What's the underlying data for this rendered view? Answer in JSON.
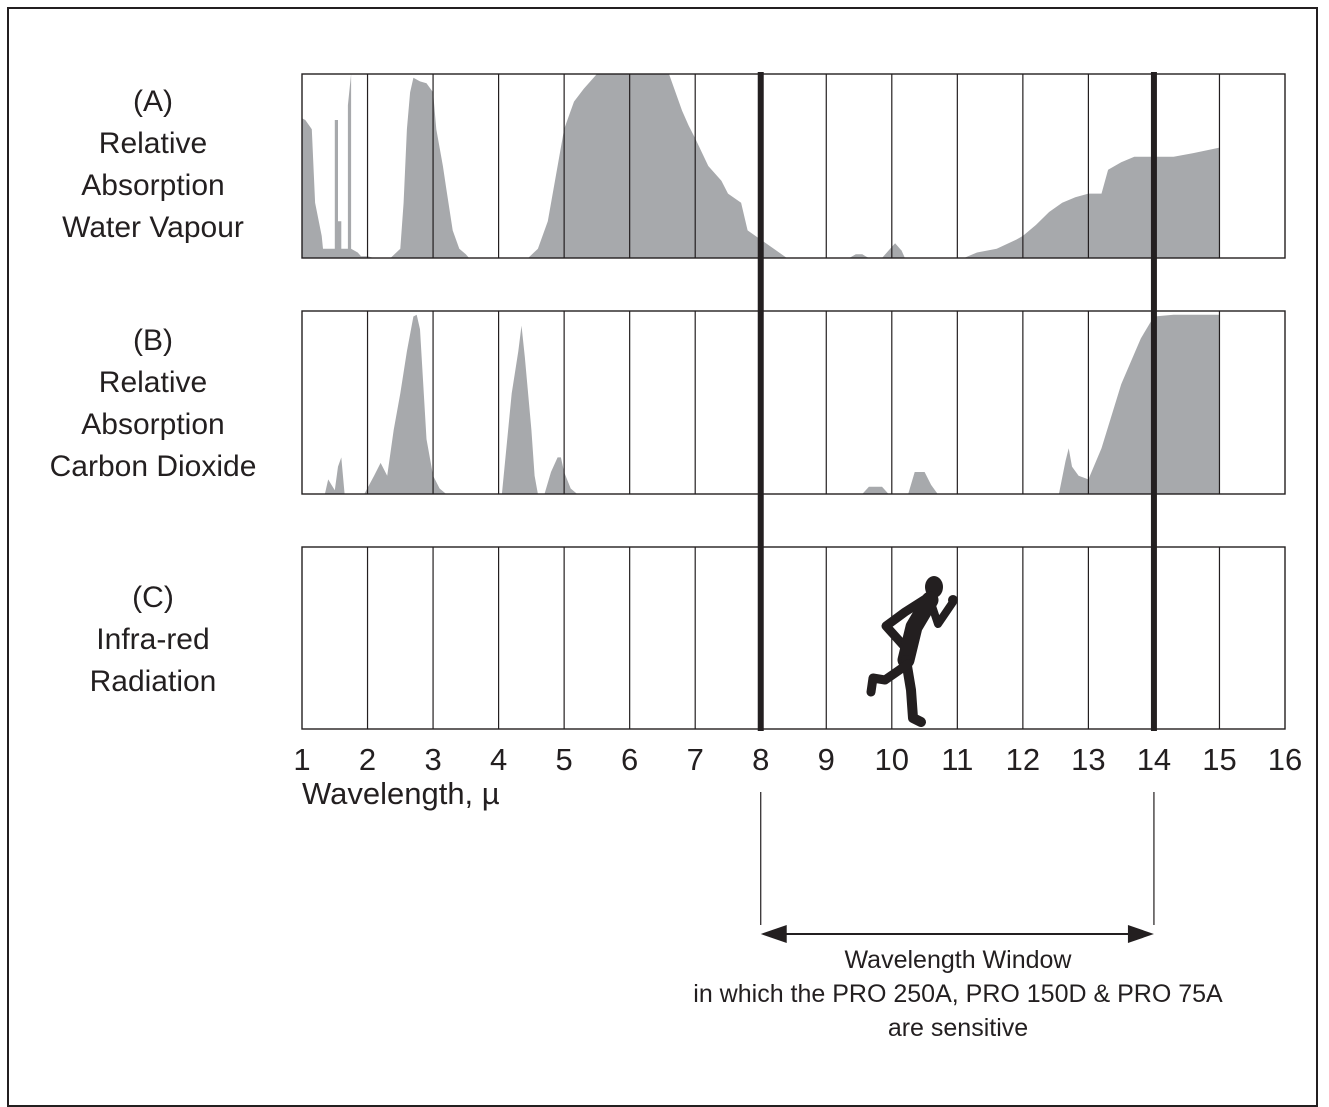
{
  "chart_data": {
    "type": "area",
    "x_range": [
      1,
      16
    ],
    "xticks": [
      "1",
      "2",
      "3",
      "4",
      "5",
      "6",
      "7",
      "8",
      "9",
      "10",
      "11",
      "12",
      "13",
      "14",
      "15",
      "16"
    ],
    "xlabel": "Wavelength, µ",
    "grid": true,
    "fill_color": "#a7a9ac",
    "line_color": "#231f20",
    "panels": [
      {
        "id": "A",
        "label_lines": [
          "(A)",
          "Relative",
          "Absorption",
          "Water Vapour"
        ],
        "y_range": [
          0,
          1
        ],
        "series": [
          {
            "x": [
              1.0,
              1.05,
              1.15,
              1.2,
              1.3,
              1.32,
              1.45,
              1.5,
              1.5,
              1.55,
              1.55,
              1.6,
              1.6,
              1.7,
              1.7,
              1.75,
              1.75,
              1.85,
              1.9,
              2.0,
              2.1
            ],
            "y": [
              0.76,
              0.75,
              0.7,
              0.3,
              0.12,
              0.05,
              0.05,
              0.05,
              0.75,
              0.75,
              0.2,
              0.2,
              0.05,
              0.05,
              0.83,
              1.0,
              0.05,
              0.03,
              0.01,
              0.01,
              0.0
            ]
          },
          {
            "x": [
              2.35,
              2.5,
              2.55,
              2.6,
              2.65,
              2.7,
              2.8,
              2.9,
              3.0,
              3.05,
              3.1,
              3.15,
              3.2,
              3.3,
              3.4,
              3.5,
              3.55
            ],
            "y": [
              0.0,
              0.05,
              0.3,
              0.7,
              0.9,
              0.98,
              0.96,
              0.95,
              0.9,
              0.7,
              0.6,
              0.5,
              0.38,
              0.15,
              0.05,
              0.02,
              0.0
            ]
          },
          {
            "x": [
              4.45,
              4.6,
              4.75,
              4.9,
              5.0,
              5.15,
              5.3,
              5.5,
              6.0,
              6.6,
              6.8,
              6.9,
              7.0,
              7.2,
              7.4,
              7.5,
              7.7,
              7.8,
              8.0,
              8.2,
              8.4
            ],
            "y": [
              0.0,
              0.05,
              0.2,
              0.5,
              0.7,
              0.85,
              0.92,
              1.0,
              1.0,
              1.0,
              0.8,
              0.72,
              0.65,
              0.5,
              0.42,
              0.35,
              0.3,
              0.15,
              0.1,
              0.05,
              0.0
            ]
          },
          {
            "x": [
              9.35,
              9.45,
              9.55,
              9.6,
              9.65
            ],
            "y": [
              0.0,
              0.02,
              0.02,
              0.01,
              0.0
            ]
          },
          {
            "x": [
              9.85,
              9.95,
              10.05,
              10.15,
              10.2
            ],
            "y": [
              0.0,
              0.04,
              0.08,
              0.04,
              0.0
            ]
          },
          {
            "x": [
              11.1,
              11.3,
              11.6,
              11.9,
              12.0,
              12.2,
              12.4,
              12.6,
              12.8,
              13.0,
              13.2,
              13.3,
              13.5,
              13.7,
              14.0,
              14.3,
              14.6,
              15.0
            ],
            "y": [
              0.0,
              0.03,
              0.05,
              0.1,
              0.12,
              0.18,
              0.25,
              0.3,
              0.33,
              0.35,
              0.35,
              0.48,
              0.52,
              0.55,
              0.55,
              0.55,
              0.57,
              0.6
            ]
          }
        ]
      },
      {
        "id": "B",
        "label_lines": [
          "(B)",
          "Relative",
          "Absorption",
          "Carbon Dioxide"
        ],
        "y_range": [
          0,
          1
        ],
        "series": [
          {
            "x": [
              1.35,
              1.4,
              1.45,
              1.5,
              1.55,
              1.6,
              1.65
            ],
            "y": [
              0.0,
              0.08,
              0.05,
              0.02,
              0.15,
              0.2,
              0.0
            ]
          },
          {
            "x": [
              1.95,
              2.1,
              2.2,
              2.3,
              2.4,
              2.5,
              2.6,
              2.7,
              2.75,
              2.8,
              2.9,
              3.0,
              3.1,
              3.2
            ],
            "y": [
              0.0,
              0.1,
              0.17,
              0.1,
              0.35,
              0.55,
              0.78,
              0.97,
              0.98,
              0.9,
              0.3,
              0.1,
              0.03,
              0.0
            ]
          },
          {
            "x": [
              4.05,
              4.2,
              4.3,
              4.35,
              4.4,
              4.5,
              4.55,
              4.6
            ],
            "y": [
              0.0,
              0.55,
              0.78,
              0.92,
              0.75,
              0.35,
              0.1,
              0.0
            ]
          },
          {
            "x": [
              4.7,
              4.8,
              4.9,
              4.95,
              5.0,
              5.1,
              5.2
            ],
            "y": [
              0.0,
              0.12,
              0.2,
              0.2,
              0.12,
              0.03,
              0.0
            ]
          },
          {
            "x": [
              9.55,
              9.65,
              9.85,
              9.9,
              9.95
            ],
            "y": [
              0.0,
              0.04,
              0.04,
              0.02,
              0.0
            ]
          },
          {
            "x": [
              10.25,
              10.35,
              10.5,
              10.6,
              10.7
            ],
            "y": [
              0.0,
              0.12,
              0.12,
              0.05,
              0.0
            ]
          },
          {
            "x": [
              12.55,
              12.65,
              12.7,
              12.75,
              12.85,
              13.0,
              13.2,
              13.5,
              13.8,
              14.0,
              14.3,
              14.7,
              15.0
            ],
            "y": [
              0.0,
              0.18,
              0.25,
              0.15,
              0.1,
              0.08,
              0.25,
              0.6,
              0.85,
              0.97,
              0.98,
              0.98,
              0.98
            ]
          }
        ]
      },
      {
        "id": "C",
        "label_lines": [
          "(C)",
          "Infra-red",
          "Radiation"
        ],
        "y_range": [
          0,
          1
        ],
        "series": []
      }
    ],
    "window_lines": [
      8,
      14
    ],
    "window_caption": [
      "Wavelength Window",
      "in which the PRO 250A, PRO 150D & PRO 75A",
      "are sensitive"
    ]
  }
}
